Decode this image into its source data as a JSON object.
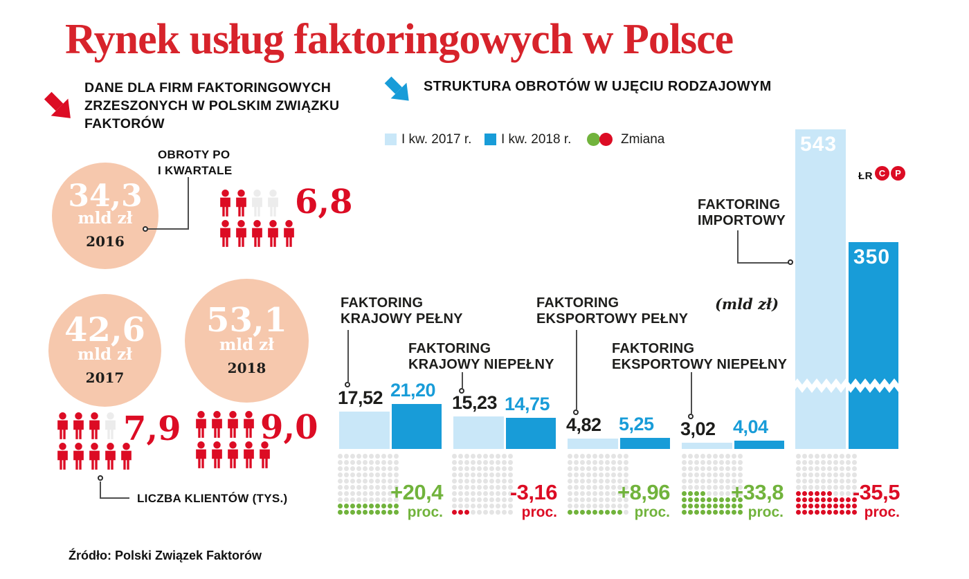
{
  "title": "Rynek usług faktoringowych w Polsce",
  "credit": {
    "initials": "ŁR",
    "badges": [
      "C",
      "P"
    ]
  },
  "source": "Źródło: Polski Związek Faktorów",
  "colors": {
    "red": "#dc0c24",
    "title_red": "#d7232b",
    "salmon": "#f6c8ad",
    "light_blue": "#c9e7f8",
    "blue": "#189cd8",
    "green": "#71b33c",
    "gray_dot": "#e4e4e4",
    "person_gray": "#ececec",
    "ink": "#1d1d1b"
  },
  "left": {
    "heading_lines": [
      "DANE DLA FIRM FAKTORINGOWYCH",
      "ZRZESZONYCH W POLSKIM ZWIĄZKU",
      "FAKTORÓW"
    ],
    "turnover_label_lines": [
      "OBROTY PO",
      "I KWARTALE"
    ],
    "clients_label": "LICZBA KLIENTÓW (TYS.)",
    "years": [
      {
        "year": "2016",
        "turnover": "34,3",
        "unit": "mld zł",
        "clients": "6,8",
        "icons": {
          "top_filled": 2,
          "top_empty": 2,
          "bottom_filled": 5
        }
      },
      {
        "year": "2017",
        "turnover": "42,6",
        "unit": "mld zł",
        "clients": "7,9",
        "icons": {
          "top_filled": 3,
          "top_empty": 1,
          "bottom_filled": 5
        }
      },
      {
        "year": "2018",
        "turnover": "53,1",
        "unit": "mld zł",
        "clients": "9,0",
        "icons": {
          "top_filled": 4,
          "top_empty": 0,
          "bottom_filled": 5
        }
      }
    ]
  },
  "right": {
    "heading": "STRUKTURA OBROTÓW W UJĘCIU RODZAJOWYM",
    "unit_label": "(mld zł)",
    "legend": [
      {
        "label": "I kw. 2017 r."
      },
      {
        "label": "I kw. 2018 r."
      },
      {
        "label": "Zmiana"
      }
    ],
    "groups": [
      {
        "name_lines": [
          "FAKTORING",
          "KRAJOWY PEŁNY"
        ],
        "v2017": "17,52",
        "v2018": "21,20",
        "change": "+20,4",
        "change_unit": "proc.",
        "direction": "up",
        "dots": 20
      },
      {
        "name_lines": [
          "FAKTORING",
          "KRAJOWY NIEPEŁNY"
        ],
        "v2017": "15,23",
        "v2018": "14,75",
        "change": "-3,16",
        "change_unit": "proc.",
        "direction": "down",
        "dots": 3
      },
      {
        "name_lines": [
          "FAKTORING",
          "EKSPORTOWY PEŁNY"
        ],
        "v2017": "4,82",
        "v2018": "5,25",
        "change": "+8,96",
        "change_unit": "proc.",
        "direction": "up",
        "dots": 9
      },
      {
        "name_lines": [
          "FAKTORING",
          "EKSPORTOWY NIEPEŁNY"
        ],
        "v2017": "3,02",
        "v2018": "4,04",
        "change": "+33,8",
        "change_unit": "proc.",
        "direction": "up",
        "dots": 34
      },
      {
        "name_lines": [
          "FAKTORING",
          "IMPORTOWY"
        ],
        "v2017": "543",
        "v2018": "350",
        "change": "-35,5",
        "change_unit": "proc.",
        "direction": "down",
        "dots": 36
      }
    ]
  },
  "chart_data": [
    {
      "type": "bar",
      "title": "Dane dla firm faktoringowych zrzeszonych w Polskim Związku Faktorów — obroty po I kwartale",
      "categories": [
        "2016",
        "2017",
        "2018"
      ],
      "series": [
        {
          "name": "Obroty po I kwartale (mld zł)",
          "values": [
            34.3,
            42.6,
            53.1
          ]
        },
        {
          "name": "Liczba klientów (tys.)",
          "values": [
            6.8,
            7.9,
            9.0
          ]
        }
      ]
    },
    {
      "type": "bar",
      "title": "Struktura obrotów w ujęciu rodzajowym",
      "categories": [
        "Faktoring krajowy pełny",
        "Faktoring krajowy niepełny",
        "Faktoring eksportowy pełny",
        "Faktoring eksportowy niepełny",
        "Faktoring importowy"
      ],
      "series": [
        {
          "name": "I kw. 2017 r.",
          "values": [
            17.52,
            15.23,
            4.82,
            3.02,
            543
          ]
        },
        {
          "name": "I kw. 2018 r.",
          "values": [
            21.2,
            14.75,
            5.25,
            4.04,
            350
          ]
        }
      ],
      "change_percent": [
        20.4,
        -3.16,
        8.96,
        33.8,
        -35.5
      ],
      "unit": "mld zł",
      "legend_position": "top",
      "grid": false,
      "note": "Słupki faktoringu importowego pokazane z przerwaniem osi (axis break)"
    }
  ]
}
